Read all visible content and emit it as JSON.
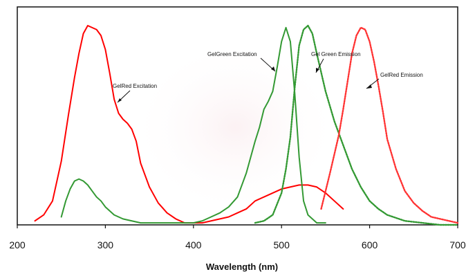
{
  "chart_data": {
    "type": "line",
    "title": "",
    "xlabel": "Wavelength (nm)",
    "ylabel": "",
    "xlim": [
      200,
      700
    ],
    "ylim": [
      0,
      1.0
    ],
    "xticks": [
      "200",
      "300",
      "400",
      "500",
      "600",
      "700"
    ],
    "grid": false,
    "legend": "none",
    "series": [
      {
        "name": "GelRed Excitation",
        "color": "#ff0000",
        "style": "solid",
        "x": [
          220,
          230,
          240,
          250,
          258,
          265,
          270,
          275,
          280,
          285,
          290,
          295,
          300,
          305,
          310,
          315,
          320,
          325,
          330,
          335,
          340,
          350,
          360,
          370,
          380,
          390,
          400,
          410,
          420,
          430,
          440,
          450,
          460,
          470,
          480,
          490,
          500,
          510,
          520,
          530,
          540,
          550,
          560,
          570
        ],
        "y": [
          0.02,
          0.05,
          0.12,
          0.32,
          0.55,
          0.74,
          0.86,
          0.96,
          1.0,
          0.99,
          0.98,
          0.95,
          0.88,
          0.76,
          0.63,
          0.56,
          0.53,
          0.51,
          0.48,
          0.42,
          0.31,
          0.19,
          0.11,
          0.06,
          0.03,
          0.01,
          0.01,
          0.01,
          0.02,
          0.03,
          0.04,
          0.06,
          0.08,
          0.12,
          0.14,
          0.16,
          0.18,
          0.19,
          0.2,
          0.2,
          0.19,
          0.16,
          0.12,
          0.08
        ]
      },
      {
        "name": "GelGreen Excitation",
        "color": "#339933",
        "style": "solid",
        "x": [
          250,
          255,
          260,
          265,
          270,
          275,
          280,
          285,
          290,
          295,
          300,
          310,
          320,
          330,
          340,
          350,
          360,
          370,
          380,
          390,
          400,
          410,
          420,
          430,
          440,
          450,
          460,
          470,
          475,
          480,
          485,
          490,
          495,
          500,
          505,
          510,
          515,
          520,
          525,
          530,
          540,
          550
        ],
        "y": [
          0.04,
          0.12,
          0.18,
          0.22,
          0.23,
          0.22,
          0.2,
          0.17,
          0.14,
          0.12,
          0.09,
          0.05,
          0.03,
          0.02,
          0.01,
          0.01,
          0.01,
          0.01,
          0.01,
          0.01,
          0.01,
          0.02,
          0.04,
          0.06,
          0.09,
          0.14,
          0.26,
          0.42,
          0.49,
          0.58,
          0.62,
          0.67,
          0.79,
          0.92,
          0.99,
          0.92,
          0.66,
          0.34,
          0.12,
          0.05,
          0.01,
          0.01
        ]
      },
      {
        "name": "GelGreen Emission",
        "color": "#339933",
        "style": "dotted",
        "x": [
          470,
          480,
          490,
          500,
          505,
          510,
          515,
          520,
          525,
          530,
          535,
          540,
          550,
          560,
          570,
          580,
          590,
          600,
          610,
          620,
          640,
          660,
          680,
          700
        ],
        "y": [
          0.01,
          0.02,
          0.05,
          0.16,
          0.28,
          0.44,
          0.69,
          0.9,
          0.98,
          1.0,
          0.96,
          0.86,
          0.67,
          0.52,
          0.4,
          0.28,
          0.19,
          0.12,
          0.08,
          0.05,
          0.02,
          0.01,
          0.0,
          0.0
        ],
        "legend_label_shown": "GelGreen Emission"
      },
      {
        "name": "GelRed Emission",
        "color": "#ff3333",
        "style": "dotted",
        "x": [
          545,
          555,
          565,
          570,
          575,
          580,
          585,
          590,
          595,
          600,
          605,
          610,
          615,
          620,
          630,
          640,
          650,
          660,
          670,
          680,
          690,
          700
        ],
        "y": [
          0.08,
          0.26,
          0.45,
          0.58,
          0.72,
          0.86,
          0.95,
          0.99,
          0.98,
          0.92,
          0.82,
          0.7,
          0.57,
          0.43,
          0.28,
          0.17,
          0.11,
          0.07,
          0.04,
          0.03,
          0.02,
          0.01
        ]
      }
    ],
    "annotations": [
      {
        "text": "GelRed Excitation",
        "series_index": 0
      },
      {
        "text": "GelGreen Excitation",
        "series_index": 1
      },
      {
        "text": "Gel Green Emission",
        "series_index": 2
      },
      {
        "text": "GelRed Emission",
        "series_index": 3
      }
    ]
  }
}
